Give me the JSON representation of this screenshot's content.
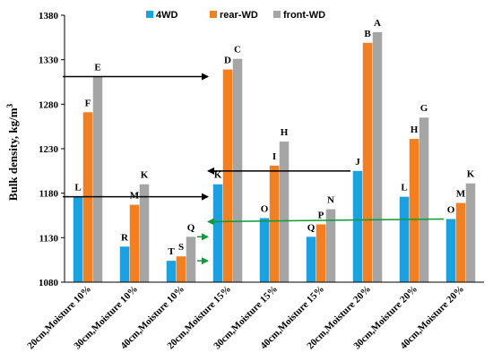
{
  "chart_data": {
    "type": "bar",
    "title": "",
    "xlabel": "",
    "ylabel": "Bulk density, kg/m",
    "ylabel_sup": "3",
    "ylim": [
      1080,
      1380
    ],
    "yticks": [
      1080,
      1130,
      1180,
      1230,
      1280,
      1330,
      1380
    ],
    "grid": false,
    "legend_position": "top-center",
    "categories": [
      "20cm,Moisture 10%",
      "30cm,Moisture 10%",
      "40cm,Moisture 10%",
      "20cm,Moisture 15%",
      "30cm,Moisture 15%",
      "40cm,Moisture 15%",
      "20cm,Moisture 20%",
      "30cm,Moisture 20%",
      "40cm,Moisture 20%"
    ],
    "series": [
      {
        "name": "4WD",
        "color": "#1BA1E2",
        "values": [
          1176,
          1120,
          1104,
          1190,
          1152,
          1131,
          1205,
          1176,
          1151
        ],
        "letters": [
          "L",
          "R",
          "T",
          "K",
          "O",
          "Q",
          "J",
          "L",
          "O"
        ]
      },
      {
        "name": "rear-WD",
        "color": "#F47F20",
        "values": [
          1271,
          1167,
          1109,
          1319,
          1211,
          1145,
          1349,
          1241,
          1169
        ],
        "letters": [
          "F",
          "M",
          "S",
          "D",
          "I",
          "P",
          "B",
          "H",
          "M"
        ]
      },
      {
        "name": "front-WD",
        "color": "#A5A5A5",
        "values": [
          1311,
          1190,
          1131,
          1331,
          1238,
          1162,
          1361,
          1265,
          1191
        ],
        "letters": [
          "E",
          "K",
          "Q",
          "C",
          "H",
          "N",
          "A",
          "G",
          "K"
        ]
      }
    ],
    "annotations": [
      {
        "type": "arrow",
        "color": "#000000",
        "from": {
          "category": 0,
          "y": 1311
        },
        "to": {
          "category": 3,
          "y": 1311
        }
      },
      {
        "type": "arrow",
        "color": "#000000",
        "from": {
          "category": 6,
          "y": 1205
        },
        "to": {
          "category": 3,
          "y": 1205
        }
      },
      {
        "type": "arrow",
        "color": "#000000",
        "from": {
          "category": 0,
          "y": 1176
        },
        "to": {
          "category": 3,
          "y": 1176
        }
      },
      {
        "type": "arrow",
        "color": "#0A9A3A",
        "from": {
          "category": 8,
          "y": 1151
        },
        "to": {
          "category": 3,
          "y": 1148
        }
      },
      {
        "type": "arrow",
        "color": "#0A9A3A",
        "from": {
          "category": 2,
          "y": 1131
        },
        "to": {
          "category": 3,
          "y": 1131
        }
      },
      {
        "type": "arrow",
        "color": "#0A9A3A",
        "from": {
          "category": 2,
          "y": 1104
        },
        "to": {
          "category": 3,
          "y": 1104
        }
      }
    ]
  }
}
